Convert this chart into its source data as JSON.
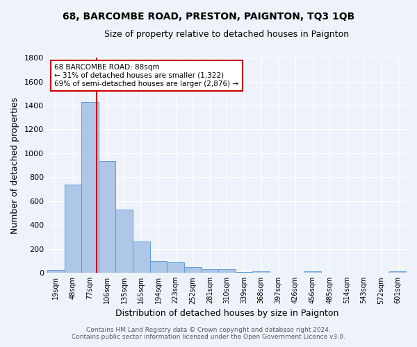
{
  "title": "68, BARCOMBE ROAD, PRESTON, PAIGNTON, TQ3 1QB",
  "subtitle": "Size of property relative to detached houses in Paignton",
  "xlabel": "Distribution of detached houses by size in Paignton",
  "ylabel": "Number of detached properties",
  "footnote1": "Contains HM Land Registry data © Crown copyright and database right 2024.",
  "footnote2": "Contains public sector information licensed under the Open Government Licence v3.0.",
  "categories": [
    "19sqm",
    "48sqm",
    "77sqm",
    "106sqm",
    "135sqm",
    "165sqm",
    "194sqm",
    "223sqm",
    "252sqm",
    "281sqm",
    "310sqm",
    "339sqm",
    "368sqm",
    "397sqm",
    "426sqm",
    "456sqm",
    "485sqm",
    "514sqm",
    "543sqm",
    "572sqm",
    "601sqm"
  ],
  "values": [
    22,
    738,
    1430,
    935,
    530,
    260,
    100,
    88,
    46,
    28,
    28,
    5,
    15,
    0,
    0,
    12,
    0,
    0,
    0,
    0,
    12
  ],
  "bar_color": "#aec6e8",
  "bar_edge_color": "#5b9bd5",
  "bg_color": "#eef3fb",
  "grid_color": "#ffffff",
  "annotation_text": "68 BARCOMBE ROAD: 88sqm\n← 31% of detached houses are smaller (1,322)\n69% of semi-detached houses are larger (2,876) →",
  "annotation_box_color": "#ffffff",
  "annotation_box_edge": "#cc0000",
  "red_line_color": "#cc0000",
  "ylim": [
    0,
    1800
  ],
  "yticks": [
    0,
    200,
    400,
    600,
    800,
    1000,
    1200,
    1400,
    1600,
    1800
  ]
}
